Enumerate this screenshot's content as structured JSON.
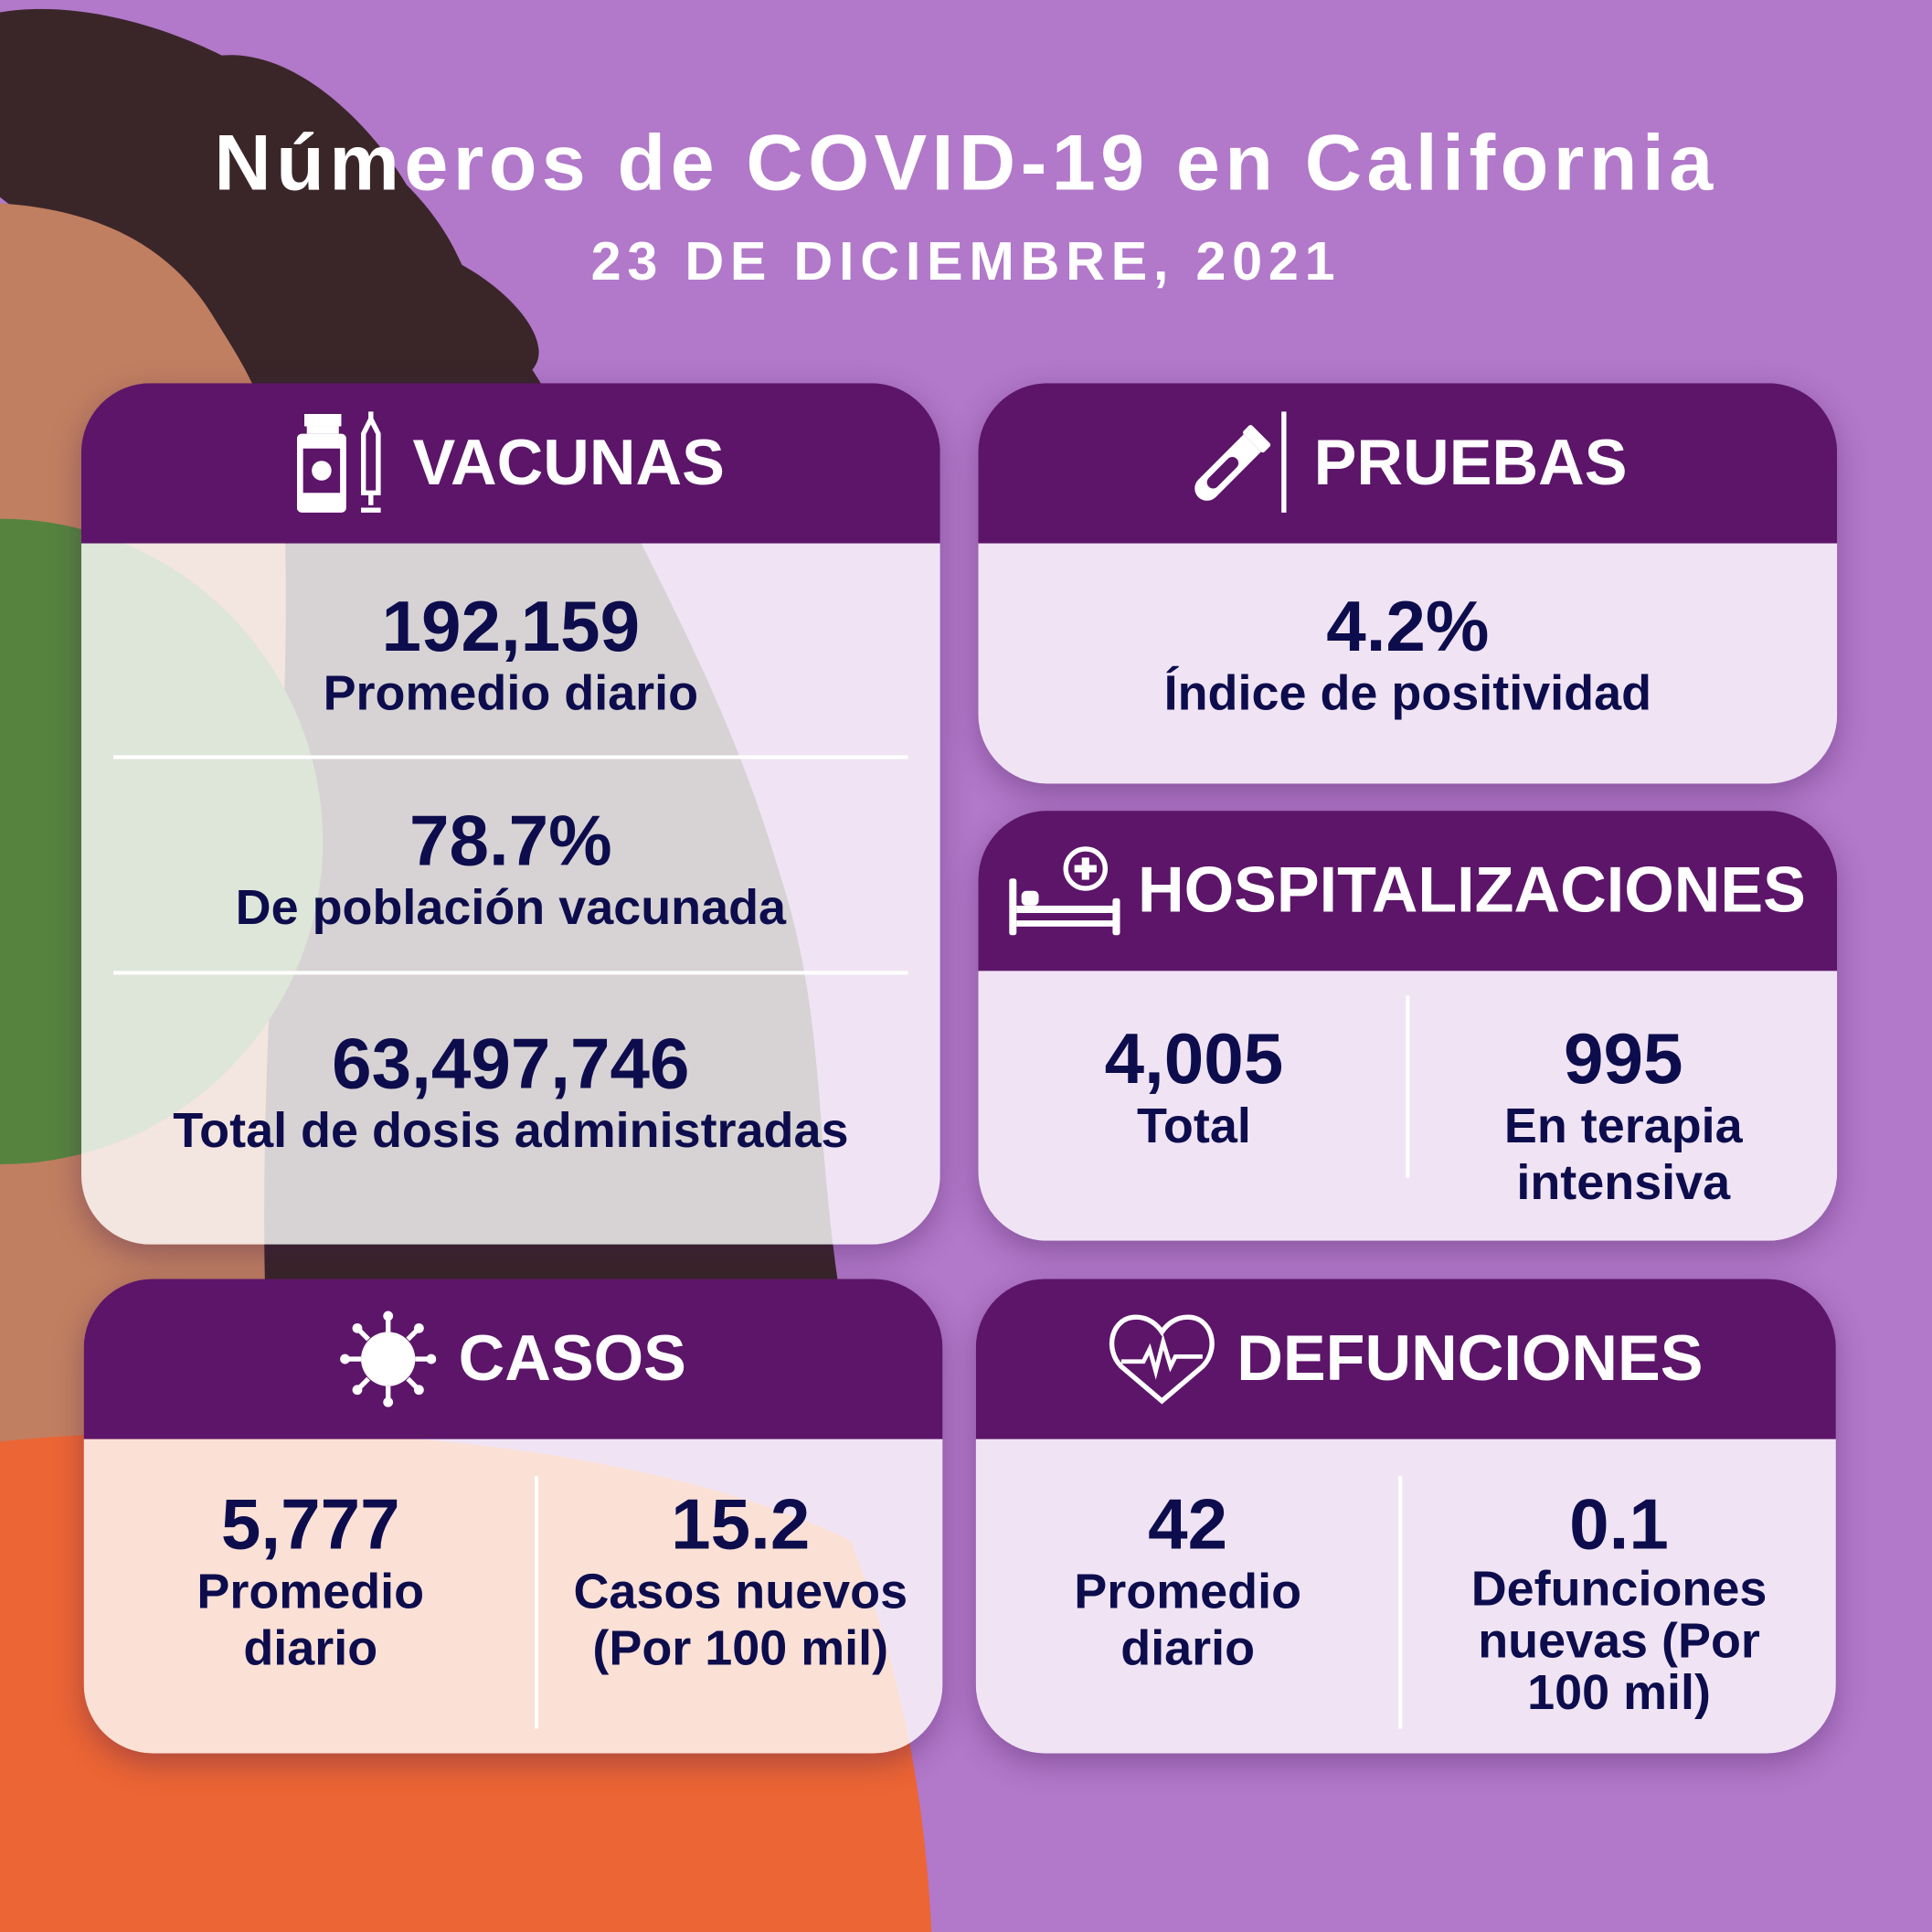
{
  "header": {
    "title": "Números de COVID-19 en California",
    "date": "23 DE DICIEMBRE, 2021"
  },
  "colors": {
    "background": "#b278c9",
    "card_header": "#5c1569",
    "text": "#0d0d4d",
    "hair": "#3a2629",
    "skin": "#c17f61",
    "green": "#56843f",
    "orange": "#ec6534"
  },
  "vacunas": {
    "title": "VACUNAS",
    "icon": "vaccine-vial-syringe-icon",
    "items": [
      {
        "value": "192,159",
        "label": "Promedio diario"
      },
      {
        "value": "78.7%",
        "label": "De población vacunada"
      },
      {
        "value": "63,497,746",
        "label": "Total de dosis administradas"
      }
    ]
  },
  "pruebas": {
    "title": "PRUEBAS",
    "icon": "test-tube-swab-icon",
    "value": "4.2%",
    "label": "Índice de positividad"
  },
  "hospitalizaciones": {
    "title": "HOSPITALIZACIONES",
    "icon": "hospital-bed-icon",
    "items": [
      {
        "value": "4,005",
        "label": "Total"
      },
      {
        "value": "995",
        "label": "En terapia intensiva"
      }
    ]
  },
  "casos": {
    "title": "CASOS",
    "icon": "virus-icon",
    "items": [
      {
        "value": "5,777",
        "label": "Promedio diario"
      },
      {
        "value": "15.2",
        "label": "Casos nuevos (Por 100 mil)"
      }
    ]
  },
  "defunciones": {
    "title": "DEFUNCIONES",
    "icon": "heart-pulse-icon",
    "items": [
      {
        "value": "42",
        "label": "Promedio diario"
      },
      {
        "value": "0.1",
        "label": "Defunciones nuevas (Por 100 mil)"
      }
    ]
  }
}
